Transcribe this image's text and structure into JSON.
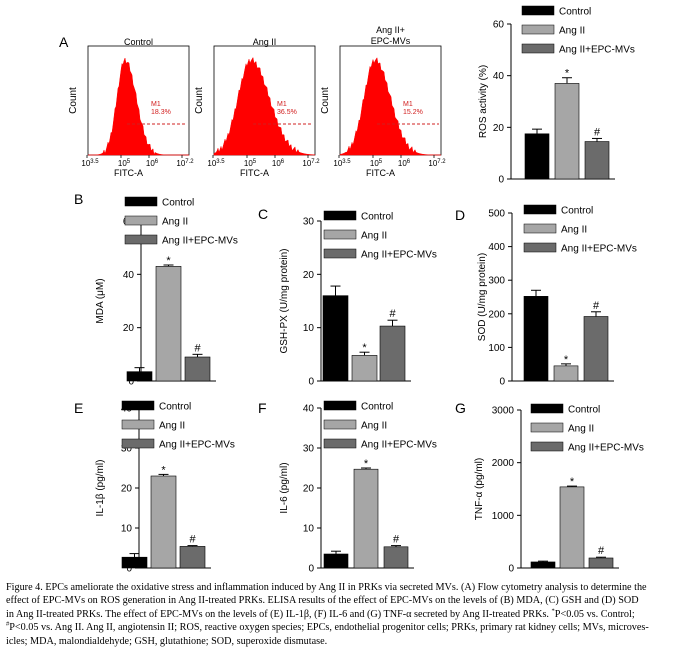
{
  "colors": {
    "control": "#000000",
    "ang_ii": "#a6a6a6",
    "ang_ii_epc": "#6b6b6b",
    "histogram_fill": "#ff0000",
    "gate_line": "#d22020"
  },
  "flow": {
    "panel_label": "A",
    "ylabel": "Count",
    "xlabel": "FITC-A",
    "x_tick_exponents": [
      "3.5",
      "5",
      "6",
      "7.2"
    ],
    "tick_base": "10",
    "gate_label": "M1",
    "histograms": [
      {
        "title": "Control",
        "gate_percent": "18.3%"
      },
      {
        "title": "Ang II",
        "gate_percent": "36.5%"
      },
      {
        "title": "Ang II+\nEPC-MVs",
        "gate_percent": "15.2%"
      }
    ]
  },
  "legend": {
    "control": "Control",
    "ang_ii": "Ang II",
    "ang_ii_epc": "Ang II+EPC-MVs"
  },
  "chart_data": [
    {
      "id": "ros",
      "type": "bar",
      "panel": "",
      "ylabel": "ROS activity (%)",
      "ylim": [
        0,
        60
      ],
      "yticks": [
        "0",
        "20",
        "40",
        "60"
      ],
      "categories": [
        "Control",
        "Ang II",
        "Ang II+EPC-MVs"
      ],
      "values": [
        17.5,
        37,
        14.5
      ],
      "errors": [
        1.8,
        2.2,
        1.2
      ],
      "significance": [
        "",
        "*",
        "#"
      ]
    },
    {
      "id": "mda",
      "type": "bar",
      "panel": "B",
      "ylabel": "MDA (μM)",
      "ylim": [
        0,
        60
      ],
      "yticks": [
        "0",
        "20",
        "40",
        "60"
      ],
      "categories": [
        "Control",
        "Ang II",
        "Ang II+EPC-MVs"
      ],
      "values": [
        3.5,
        43,
        9
      ],
      "errors": [
        1.5,
        0.5,
        1
      ],
      "significance": [
        "",
        "*",
        "#"
      ]
    },
    {
      "id": "gsh",
      "type": "bar",
      "panel": "C",
      "ylabel": "GSH-PX (U/mg protein)",
      "ylim": [
        0,
        30
      ],
      "yticks": [
        "0",
        "10",
        "20",
        "30"
      ],
      "categories": [
        "Control",
        "Ang II",
        "Ang II+EPC-MVs"
      ],
      "values": [
        16,
        4.8,
        10.3
      ],
      "errors": [
        1.8,
        0.6,
        1.1
      ],
      "significance": [
        "",
        "*",
        "#"
      ]
    },
    {
      "id": "sod",
      "type": "bar",
      "panel": "D",
      "ylabel": "SOD (U/mg protein)",
      "ylim": [
        0,
        500
      ],
      "yticks": [
        "0",
        "100",
        "200",
        "300",
        "400",
        "500"
      ],
      "categories": [
        "Control",
        "Ang II",
        "Ang II+EPC-MVs"
      ],
      "values": [
        252,
        45,
        192
      ],
      "errors": [
        18,
        6,
        14
      ],
      "significance": [
        "",
        "*",
        "#"
      ]
    },
    {
      "id": "il1b",
      "type": "bar",
      "panel": "E",
      "ylabel": "IL-1β (pg/ml)",
      "ylim": [
        0,
        40
      ],
      "yticks": [
        "0",
        "10",
        "20",
        "30",
        "40"
      ],
      "categories": [
        "Control",
        "Ang II",
        "Ang II+EPC-MVs"
      ],
      "values": [
        2.7,
        23,
        5.4
      ],
      "errors": [
        0.9,
        0.4,
        0.2
      ],
      "significance": [
        "",
        "*",
        "#"
      ]
    },
    {
      "id": "il6",
      "type": "bar",
      "panel": "F",
      "ylabel": "IL-6 (pg/ml)",
      "ylim": [
        0,
        40
      ],
      "yticks": [
        "0",
        "10",
        "20",
        "30",
        "40"
      ],
      "categories": [
        "Control",
        "Ang II",
        "Ang II+EPC-MVs"
      ],
      "values": [
        3.5,
        24.7,
        5.3
      ],
      "errors": [
        0.7,
        0.3,
        0.3
      ],
      "significance": [
        "",
        "*",
        "#"
      ]
    },
    {
      "id": "tnf",
      "type": "bar",
      "panel": "G",
      "ylabel": "TNF-α (pg/ml)",
      "ylim": [
        0,
        3000
      ],
      "yticks": [
        "0",
        "1000",
        "2000",
        "3000"
      ],
      "categories": [
        "Control",
        "Ang II",
        "Ang II+EPC-MVs"
      ],
      "values": [
        115,
        1540,
        190
      ],
      "errors": [
        15,
        15,
        15
      ],
      "significance": [
        "",
        "*",
        "#"
      ]
    }
  ],
  "caption": {
    "line1": "Figure 4. EPCs ameliorate the oxidative stress and inflammation induced by Ang II in PRKs via secreted MVs. (A) Flow cytometry analysis to determine the",
    "line2": "effect of EPC-MVs on ROS generation in Ang II-treated PRKs. ELISA results of the effect of EPC-MVs on the levels of (B) MDA, (C) GSH and (D) SOD",
    "line3": "in Ang II-treated PRKs. The effect of EPC-MVs on the levels of (E) IL-1β, (F) IL-6 and (G) TNF-α secreted by Ang II-treated PRKs.",
    "line3_sup": "*",
    "line3_end": "P<0.05 vs. Control;",
    "line4_sup": "#",
    "line4": "P<0.05 vs. Ang II. Ang II, angiotensin II; ROS, reactive oxygen species; EPCs, endothelial progenitor cells; PRKs, primary rat kidney cells; MVs, microves-",
    "line5": "icles; MDA, malondialdehyde; GSH, glutathione; SOD, superoxide dismutase."
  }
}
